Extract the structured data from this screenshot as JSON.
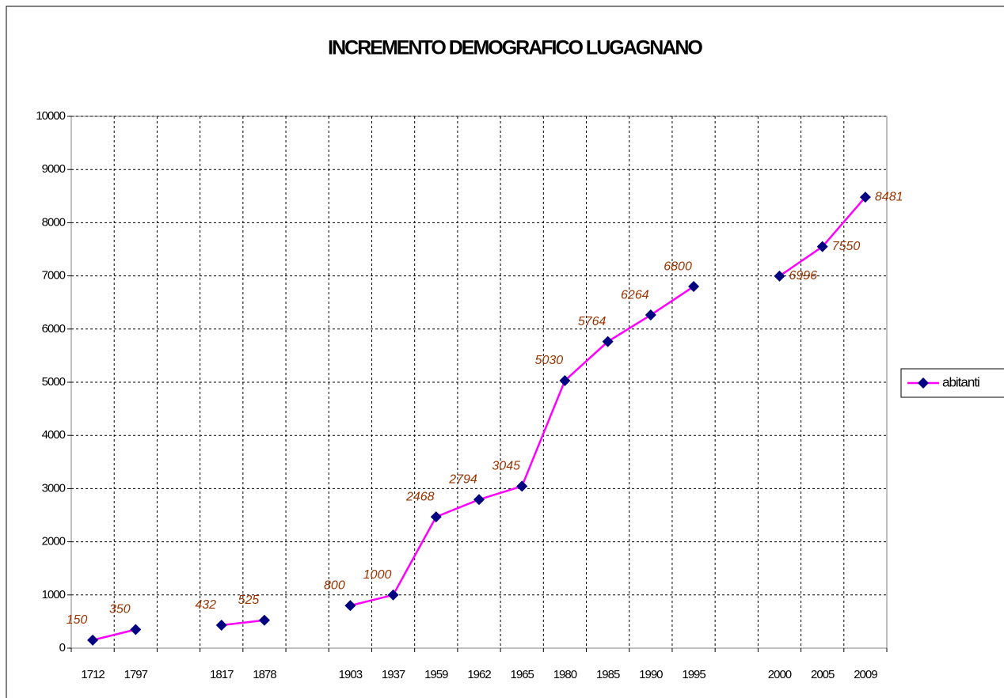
{
  "chart_data": {
    "type": "line",
    "title": "INCREMENTO DEMOGRAFICO LUGAGNANO",
    "categories": [
      "1712",
      "1797",
      null,
      "1817",
      "1878",
      null,
      "1903",
      "1937",
      "1959",
      "1962",
      "1965",
      "1980",
      "1985",
      "1990",
      "1995",
      null,
      "2000",
      "2005",
      "2009"
    ],
    "series": [
      {
        "name": "abitanti",
        "color": "#ff00ff",
        "marker_color": "#000080",
        "values": [
          150,
          350,
          null,
          432,
          525,
          null,
          800,
          1000,
          2468,
          2794,
          3045,
          5030,
          5764,
          6264,
          6800,
          null,
          6996,
          7550,
          8481
        ]
      }
    ],
    "ylim": [
      0,
      10000
    ],
    "yticks": [
      0,
      1000,
      2000,
      3000,
      4000,
      5000,
      6000,
      7000,
      8000,
      9000,
      10000
    ],
    "grid": true,
    "legend": "right"
  }
}
